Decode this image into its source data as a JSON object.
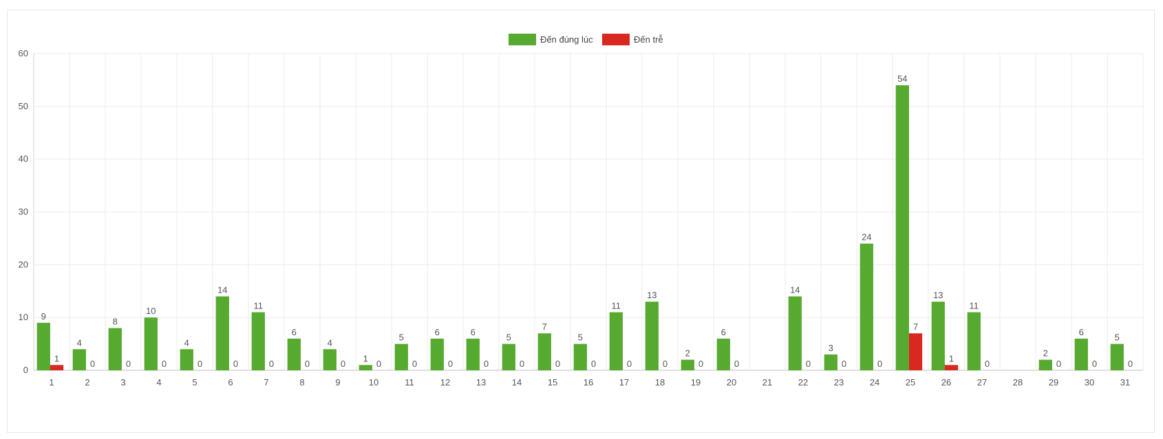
{
  "chart_data": {
    "type": "bar",
    "categories": [
      "1",
      "2",
      "3",
      "4",
      "5",
      "6",
      "7",
      "8",
      "9",
      "10",
      "11",
      "12",
      "13",
      "14",
      "15",
      "16",
      "17",
      "18",
      "19",
      "20",
      "21",
      "22",
      "23",
      "24",
      "25",
      "26",
      "27",
      "28",
      "29",
      "30",
      "31"
    ],
    "series": [
      {
        "name": "Đến đúng lúc",
        "color": "#55aa2f",
        "values": [
          9,
          4,
          8,
          10,
          4,
          14,
          11,
          6,
          4,
          1,
          5,
          6,
          6,
          5,
          7,
          5,
          11,
          13,
          2,
          6,
          null,
          14,
          3,
          24,
          54,
          13,
          11,
          null,
          2,
          6,
          5
        ]
      },
      {
        "name": "Đến trễ",
        "color": "#d9281f",
        "values": [
          1,
          0,
          0,
          0,
          0,
          0,
          0,
          0,
          0,
          0,
          0,
          0,
          0,
          0,
          0,
          0,
          0,
          0,
          0,
          0,
          null,
          0,
          0,
          0,
          7,
          1,
          0,
          null,
          0,
          0,
          0
        ]
      }
    ],
    "ylim": [
      0,
      60
    ],
    "yticks": [
      0,
      10,
      20,
      30,
      40,
      50,
      60
    ],
    "grid": true,
    "legend_position": "top-center",
    "data_labels": true
  }
}
